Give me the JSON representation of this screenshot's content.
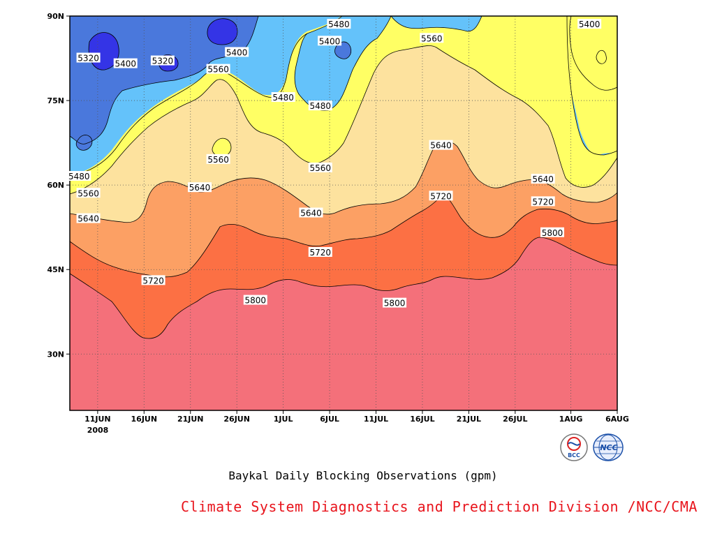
{
  "chart_data": {
    "type": "contour",
    "title": "Baykal Daily Blocking Observations (gpm)",
    "x_tick_labels": [
      "11JUN",
      "16JUN",
      "21JUN",
      "26JUN",
      "1JUL",
      "6JUL",
      "11JUL",
      "16JUL",
      "21JUL",
      "26JUL",
      "1AUG",
      "6AUG"
    ],
    "x_year_label": "2008",
    "xlim": [
      "2008-06-08",
      "2008-08-06"
    ],
    "y_tick_labels": [
      "30N",
      "45N",
      "60N",
      "75N",
      "90N"
    ],
    "ylim_deg_north": [
      20,
      90
    ],
    "contour_levels": [
      5320,
      5400,
      5480,
      5560,
      5640,
      5720,
      5800
    ],
    "fill_colors": {
      "below_5320": "#3434e6",
      "5320_5400": "#4a78dc",
      "5400_5480": "#64c2fa",
      "5480_5560": "#ffff64",
      "5560_5640": "#fde29e",
      "5640_5720": "#fca064",
      "5720_5800": "#fc7044",
      "above_5800": "#f4707a"
    },
    "contour_labels": [
      {
        "date": "2008-06-10",
        "lat": 82.5,
        "value": "5320"
      },
      {
        "date": "2008-06-14",
        "lat": 81.5,
        "value": "5400"
      },
      {
        "date": "2008-06-18",
        "lat": 82.0,
        "value": "5320"
      },
      {
        "date": "2008-06-26",
        "lat": 83.5,
        "value": "5400"
      },
      {
        "date": "2008-06-24",
        "lat": 80.5,
        "value": "5560"
      },
      {
        "date": "2008-07-01",
        "lat": 75.5,
        "value": "5480"
      },
      {
        "date": "2008-07-07",
        "lat": 88.5,
        "value": "5480"
      },
      {
        "date": "2008-07-06",
        "lat": 85.5,
        "value": "5400"
      },
      {
        "date": "2008-07-05",
        "lat": 74.0,
        "value": "5480"
      },
      {
        "date": "2008-07-17",
        "lat": 86.0,
        "value": "5560"
      },
      {
        "date": "2008-08-03",
        "lat": 88.5,
        "value": "5400"
      },
      {
        "date": "2008-06-24",
        "lat": 64.5,
        "value": "5560"
      },
      {
        "date": "2008-07-05",
        "lat": 63.0,
        "value": "5560"
      },
      {
        "date": "2008-07-18",
        "lat": 67.0,
        "value": "5640"
      },
      {
        "date": "2008-06-09",
        "lat": 61.5,
        "value": "5480"
      },
      {
        "date": "2008-06-10",
        "lat": 58.5,
        "value": "5560"
      },
      {
        "date": "2008-06-22",
        "lat": 59.5,
        "value": "5640"
      },
      {
        "date": "2008-06-10",
        "lat": 54.0,
        "value": "5640"
      },
      {
        "date": "2008-07-18",
        "lat": 58.0,
        "value": "5720"
      },
      {
        "date": "2008-07-29",
        "lat": 61.0,
        "value": "5640"
      },
      {
        "date": "2008-07-29",
        "lat": 57.0,
        "value": "5720"
      },
      {
        "date": "2008-07-04",
        "lat": 55.0,
        "value": "5640"
      },
      {
        "date": "2008-07-30",
        "lat": 51.5,
        "value": "5800"
      },
      {
        "date": "2008-07-05",
        "lat": 48.0,
        "value": "5720"
      },
      {
        "date": "2008-06-17",
        "lat": 43.0,
        "value": "5720"
      },
      {
        "date": "2008-06-28",
        "lat": 39.5,
        "value": "5800"
      },
      {
        "date": "2008-07-13",
        "lat": 39.0,
        "value": "5800"
      }
    ]
  },
  "credit": "Climate System Diagnostics and Prediction Division /NCC/CMA",
  "logos": [
    {
      "name": "bcc-logo",
      "text": "BCC"
    },
    {
      "name": "ncc-logo",
      "text": "NCC"
    }
  ]
}
